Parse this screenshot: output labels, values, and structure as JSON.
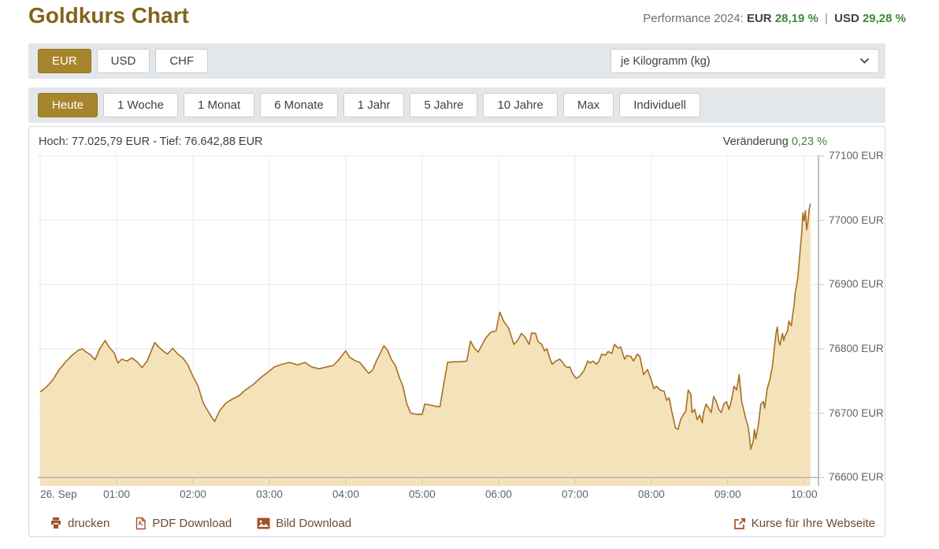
{
  "colors": {
    "accent_gold": "#a6852d",
    "line": "#a86e25",
    "fill": "#f4e3ba",
    "green": "#43883c",
    "grid_h": "#e8e8e8",
    "grid_v": "#e6ebf2",
    "axis": "#a9a9a9",
    "axis_right": "#9ba1a8",
    "tick": "#bfc5cc",
    "link_icon": "#a3502a"
  },
  "header": {
    "title": "Goldkurs Chart",
    "performance": {
      "label": "Performance 2024:",
      "eur_label": "EUR",
      "eur_value": "28,19 %",
      "separator": "|",
      "usd_label": "USD",
      "usd_value": "29,28 %"
    }
  },
  "controls": {
    "currencies": [
      {
        "label": "EUR",
        "active": true
      },
      {
        "label": "USD",
        "active": false
      },
      {
        "label": "CHF",
        "active": false
      }
    ],
    "unit_select": {
      "value": "je Kilogramm (kg)"
    },
    "ranges": [
      {
        "label": "Heute",
        "active": true
      },
      {
        "label": "1 Woche",
        "active": false
      },
      {
        "label": "1 Monat",
        "active": false
      },
      {
        "label": "6 Monate",
        "active": false
      },
      {
        "label": "1 Jahr",
        "active": false
      },
      {
        "label": "5 Jahre",
        "active": false
      },
      {
        "label": "10 Jahre",
        "active": false
      },
      {
        "label": "Max",
        "active": false
      },
      {
        "label": "Individuell",
        "active": false
      }
    ]
  },
  "chart": {
    "high_low": "Hoch: 77.025,79 EUR - Tief: 76.642,88 EUR",
    "change_label": "Veränderung",
    "change_value": "0,23 %"
  },
  "chart_data": {
    "type": "area",
    "title": "Goldkurs in EUR je Kilogramm, Heute (26. Sep)",
    "high": "77.025,79 EUR",
    "low": "76.642,88 EUR",
    "change_percent": "0,23 %",
    "x_unit": "minutes since 00:00 on 26. Sep",
    "y_unit": "EUR",
    "grid": true,
    "legend": "none",
    "plot_size": [
      992,
      420
    ],
    "xlim": [
      -1.9,
      611.9
    ],
    "ylim": [
      76586.8,
      77101.2
    ],
    "x_ticks": [
      {
        "m": 0,
        "label": "26. Sep"
      },
      {
        "m": 60,
        "label": "01:00"
      },
      {
        "m": 120,
        "label": "02:00"
      },
      {
        "m": 180,
        "label": "03:00"
      },
      {
        "m": 240,
        "label": "04:00"
      },
      {
        "m": 300,
        "label": "05:00"
      },
      {
        "m": 360,
        "label": "06:00"
      },
      {
        "m": 420,
        "label": "07:00"
      },
      {
        "m": 480,
        "label": "08:00"
      },
      {
        "m": 540,
        "label": "09:00"
      },
      {
        "m": 600,
        "label": "10:00"
      }
    ],
    "y_ticks": [
      {
        "v": 77100,
        "label": "77100 EUR"
      },
      {
        "v": 77000,
        "label": "77000 EUR"
      },
      {
        "v": 76900,
        "label": "76900 EUR"
      },
      {
        "v": 76800,
        "label": "76800 EUR"
      },
      {
        "v": 76700,
        "label": "76700 EUR"
      },
      {
        "v": 76600,
        "label": "76600 EUR"
      }
    ],
    "series": [
      [
        0,
        76733
      ],
      [
        5,
        76741
      ],
      [
        10,
        76752
      ],
      [
        15,
        76768
      ],
      [
        20,
        76780
      ],
      [
        25,
        76790
      ],
      [
        30,
        76798
      ],
      [
        33,
        76800
      ],
      [
        36,
        76795
      ],
      [
        40,
        76790
      ],
      [
        43,
        76783
      ],
      [
        47,
        76801
      ],
      [
        51,
        76813
      ],
      [
        54,
        76803
      ],
      [
        58,
        76794
      ],
      [
        61,
        76778
      ],
      [
        64,
        76784
      ],
      [
        68,
        76781
      ],
      [
        72,
        76786
      ],
      [
        76,
        76780
      ],
      [
        80,
        76771
      ],
      [
        84,
        76781
      ],
      [
        87,
        76796
      ],
      [
        90,
        76810
      ],
      [
        93,
        76803
      ],
      [
        97,
        76796
      ],
      [
        100,
        76792
      ],
      [
        104,
        76801
      ],
      [
        108,
        76792
      ],
      [
        112,
        76786
      ],
      [
        116,
        76775
      ],
      [
        120,
        76757
      ],
      [
        124,
        76742
      ],
      [
        128,
        76716
      ],
      [
        133,
        76699
      ],
      [
        137,
        76687
      ],
      [
        141,
        76704
      ],
      [
        146,
        76716
      ],
      [
        151,
        76722
      ],
      [
        156,
        76727
      ],
      [
        161,
        76736
      ],
      [
        167,
        76744
      ],
      [
        173,
        76755
      ],
      [
        179,
        76764
      ],
      [
        184,
        76772
      ],
      [
        190,
        76776
      ],
      [
        196,
        76779
      ],
      [
        202,
        76775
      ],
      [
        208,
        76779
      ],
      [
        213,
        76772
      ],
      [
        219,
        76769
      ],
      [
        225,
        76772
      ],
      [
        230,
        76774
      ],
      [
        234,
        76782
      ],
      [
        240,
        76797
      ],
      [
        243,
        76787
      ],
      [
        247,
        76782
      ],
      [
        251,
        76779
      ],
      [
        255,
        76769
      ],
      [
        258,
        76762
      ],
      [
        261,
        76767
      ],
      [
        264,
        76781
      ],
      [
        267,
        76793
      ],
      [
        270,
        76805
      ],
      [
        273,
        76797
      ],
      [
        276,
        76783
      ],
      [
        279,
        76774
      ],
      [
        282,
        76756
      ],
      [
        285,
        76741
      ],
      [
        288,
        76714
      ],
      [
        291,
        76700
      ],
      [
        296,
        76698
      ],
      [
        300,
        76698
      ],
      [
        302,
        76714
      ],
      [
        306,
        76713
      ],
      [
        310,
        76711
      ],
      [
        314,
        76710
      ],
      [
        317,
        76746
      ],
      [
        320,
        76779
      ],
      [
        325,
        76780
      ],
      [
        330,
        76780
      ],
      [
        335,
        76781
      ],
      [
        338,
        76812
      ],
      [
        341,
        76801
      ],
      [
        344,
        76795
      ],
      [
        347,
        76806
      ],
      [
        350,
        76817
      ],
      [
        354,
        76826
      ],
      [
        358,
        76828
      ],
      [
        361,
        76857
      ],
      [
        364,
        76843
      ],
      [
        368,
        76832
      ],
      [
        372,
        76807
      ],
      [
        375,
        76813
      ],
      [
        378,
        76824
      ],
      [
        381,
        76818
      ],
      [
        384,
        76807
      ],
      [
        386,
        76825
      ],
      [
        389,
        76824
      ],
      [
        391,
        76811
      ],
      [
        394,
        76807
      ],
      [
        396,
        76797
      ],
      [
        398,
        76800
      ],
      [
        400,
        76787
      ],
      [
        402,
        76776
      ],
      [
        405,
        76781
      ],
      [
        408,
        76784
      ],
      [
        410,
        76780
      ],
      [
        412,
        76774
      ],
      [
        414,
        76771
      ],
      [
        416,
        76772
      ],
      [
        418,
        76762
      ],
      [
        421,
        76754
      ],
      [
        424,
        76758
      ],
      [
        427,
        76766
      ],
      [
        430,
        76781
      ],
      [
        432,
        76778
      ],
      [
        434,
        76781
      ],
      [
        437,
        76776
      ],
      [
        439,
        76781
      ],
      [
        441,
        76792
      ],
      [
        444,
        76790
      ],
      [
        446,
        76796
      ],
      [
        449,
        76793
      ],
      [
        451,
        76807
      ],
      [
        454,
        76801
      ],
      [
        456,
        76803
      ],
      [
        459,
        76784
      ],
      [
        461,
        76790
      ],
      [
        464,
        76788
      ],
      [
        466,
        76781
      ],
      [
        469,
        76792
      ],
      [
        471,
        76788
      ],
      [
        474,
        76760
      ],
      [
        477,
        76768
      ],
      [
        480,
        76751
      ],
      [
        482,
        76738
      ],
      [
        484,
        76742
      ],
      [
        487,
        76736
      ],
      [
        490,
        76734
      ],
      [
        492,
        76720
      ],
      [
        494,
        76724
      ],
      [
        496,
        76703
      ],
      [
        499,
        76677
      ],
      [
        501,
        76675
      ],
      [
        503,
        76690
      ],
      [
        505,
        76697
      ],
      [
        507,
        76703
      ],
      [
        509,
        76736
      ],
      [
        511,
        76730
      ],
      [
        512,
        76701
      ],
      [
        514,
        76706
      ],
      [
        516,
        76690
      ],
      [
        518,
        76697
      ],
      [
        520,
        76685
      ],
      [
        521,
        76701
      ],
      [
        523,
        76714
      ],
      [
        525,
        76708
      ],
      [
        527,
        76701
      ],
      [
        529,
        76726
      ],
      [
        531,
        76718
      ],
      [
        533,
        76706
      ],
      [
        535,
        76701
      ],
      [
        537,
        76714
      ],
      [
        539,
        76718
      ],
      [
        541,
        76706
      ],
      [
        543,
        76720
      ],
      [
        545,
        76742
      ],
      [
        547,
        76736
      ],
      [
        549,
        76760
      ],
      [
        551,
        76718
      ],
      [
        554,
        76693
      ],
      [
        556,
        76679
      ],
      [
        557,
        76665
      ],
      [
        558,
        76644
      ],
      [
        560,
        76656
      ],
      [
        561,
        76675
      ],
      [
        562,
        76660
      ],
      [
        564,
        76681
      ],
      [
        566,
        76714
      ],
      [
        568,
        76718
      ],
      [
        569,
        76708
      ],
      [
        571,
        76738
      ],
      [
        573,
        76751
      ],
      [
        575,
        76772
      ],
      [
        576,
        76790
      ],
      [
        578,
        76825
      ],
      [
        579,
        76834
      ],
      [
        580,
        76812
      ],
      [
        581,
        76806
      ],
      [
        582,
        76816
      ],
      [
        583,
        76824
      ],
      [
        584,
        76813
      ],
      [
        585,
        76820
      ],
      [
        587,
        76828
      ],
      [
        588,
        76843
      ],
      [
        590,
        76836
      ],
      [
        591,
        76853
      ],
      [
        592,
        76865
      ],
      [
        593,
        76887
      ],
      [
        595,
        76910
      ],
      [
        596,
        76932
      ],
      [
        597,
        76955
      ],
      [
        598,
        76977
      ],
      [
        599,
        77011
      ],
      [
        600,
        76999
      ],
      [
        601,
        77015
      ],
      [
        602,
        76985
      ],
      [
        603,
        76997
      ],
      [
        604,
        77017
      ],
      [
        605,
        77026
      ]
    ]
  },
  "footer": {
    "links": [
      {
        "label": "drucken"
      },
      {
        "label": "PDF Download"
      },
      {
        "label": "Bild Download"
      },
      {
        "label": "Kurse für Ihre Webseite"
      }
    ]
  }
}
